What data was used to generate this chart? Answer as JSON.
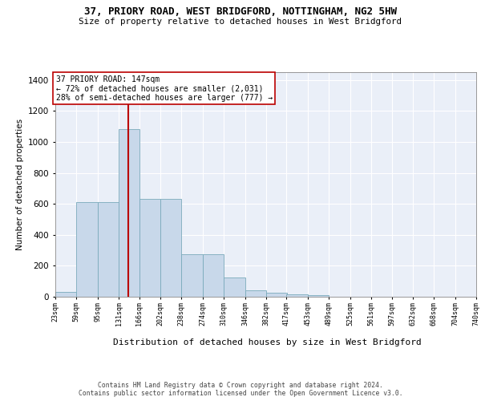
{
  "title": "37, PRIORY ROAD, WEST BRIDGFORD, NOTTINGHAM, NG2 5HW",
  "subtitle": "Size of property relative to detached houses in West Bridgford",
  "xlabel": "Distribution of detached houses by size in West Bridgford",
  "ylabel": "Number of detached properties",
  "bin_labels": [
    "23sqm",
    "59sqm",
    "95sqm",
    "131sqm",
    "166sqm",
    "202sqm",
    "238sqm",
    "274sqm",
    "310sqm",
    "346sqm",
    "382sqm",
    "417sqm",
    "453sqm",
    "489sqm",
    "525sqm",
    "561sqm",
    "597sqm",
    "632sqm",
    "668sqm",
    "704sqm",
    "740sqm"
  ],
  "bar_values": [
    30,
    612,
    612,
    1080,
    630,
    630,
    275,
    275,
    122,
    42,
    25,
    18,
    10,
    0,
    0,
    0,
    0,
    0,
    0,
    0
  ],
  "bin_edges": [
    23,
    59,
    95,
    131,
    166,
    202,
    238,
    274,
    310,
    346,
    382,
    417,
    453,
    489,
    525,
    561,
    597,
    632,
    668,
    704,
    740
  ],
  "bar_color": "#c8d8ea",
  "bar_edge_color": "#7aaabb",
  "vline_x": 147,
  "vline_color": "#bb0000",
  "annotation_text": "37 PRIORY ROAD: 147sqm\n← 72% of detached houses are smaller (2,031)\n28% of semi-detached houses are larger (777) →",
  "annotation_box_facecolor": "#ffffff",
  "annotation_box_edgecolor": "#bb0000",
  "ylim": [
    0,
    1450
  ],
  "yticks": [
    0,
    200,
    400,
    600,
    800,
    1000,
    1200,
    1400
  ],
  "bg_color": "#eaeff8",
  "grid_color": "#ffffff",
  "footer_text": "Contains HM Land Registry data © Crown copyright and database right 2024.\nContains public sector information licensed under the Open Government Licence v3.0."
}
